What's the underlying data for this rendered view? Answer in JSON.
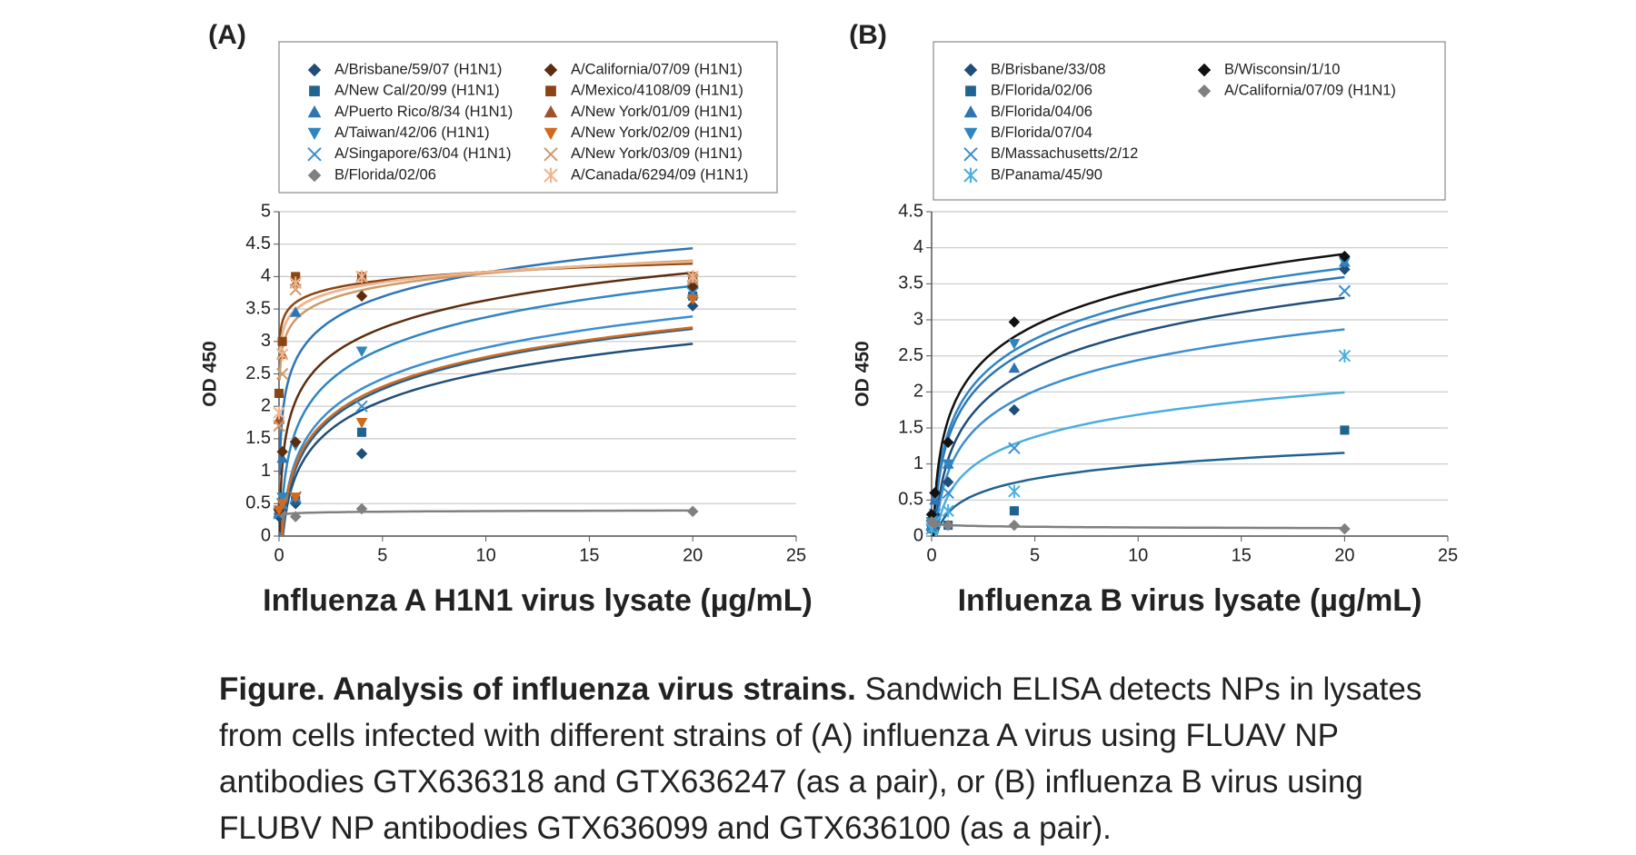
{
  "chart_data": [
    {
      "type": "scatter",
      "panel_label": "(A)",
      "x_label": "Influenza A H1N1 virus lysate (µg/mL)",
      "y_label": "OD 450",
      "xlim": [
        0,
        25
      ],
      "xticks": [
        0,
        5,
        10,
        15,
        20,
        25
      ],
      "ylim": [
        0,
        5
      ],
      "yticks": [
        0,
        0.5,
        1,
        1.5,
        2,
        2.5,
        3,
        3.5,
        4,
        4.5,
        5
      ],
      "grid": true,
      "trendline": "log",
      "x": [
        0,
        0.16,
        0.8,
        4,
        20
      ],
      "series": [
        {
          "name": "A/Brisbane/59/07 (H1N1)",
          "marker": "diamond",
          "color": "#1f4e79",
          "values": [
            0.3,
            0.4,
            0.5,
            1.27,
            3.55
          ]
        },
        {
          "name": "A/New Cal/20/99 (H1N1)",
          "marker": "square",
          "color": "#1f6391",
          "values": [
            0.35,
            0.45,
            0.55,
            1.6,
            3.7
          ]
        },
        {
          "name": "A/Puerto Rico/8/34 (H1N1)",
          "marker": "triangle",
          "color": "#2e75b6",
          "values": [
            0.4,
            1.2,
            3.45,
            4.0,
            3.9
          ]
        },
        {
          "name": "A/Taiwan/42/06 (H1N1)",
          "marker": "triangle-down",
          "color": "#2e86c1",
          "values": [
            0.4,
            0.6,
            1.4,
            2.85,
            3.85
          ]
        },
        {
          "name": "A/Singapore/63/04 (H1N1)",
          "marker": "x",
          "color": "#3a8ed0",
          "values": [
            0.35,
            0.5,
            0.6,
            2.0,
            3.75
          ]
        },
        {
          "name": "B/Florida/02/06",
          "marker": "diamond",
          "color": "#808080",
          "values": [
            0.4,
            0.35,
            0.3,
            0.42,
            0.38
          ]
        },
        {
          "name": "A/California/07/09 (H1N1)",
          "marker": "diamond",
          "color": "#5c2e0e",
          "values": [
            0.4,
            1.3,
            1.45,
            3.7,
            3.85
          ]
        },
        {
          "name": "A/Mexico/4108/09 (H1N1)",
          "marker": "square",
          "color": "#8b4513",
          "values": [
            2.2,
            3.0,
            4.0,
            4.0,
            4.0
          ]
        },
        {
          "name": "A/New York/01/09 (H1N1)",
          "marker": "triangle",
          "color": "#a0522d",
          "values": [
            1.8,
            2.8,
            3.9,
            4.0,
            4.0
          ]
        },
        {
          "name": "A/New York/02/09 (H1N1)",
          "marker": "triangle-down",
          "color": "#d2691e",
          "values": [
            0.4,
            0.5,
            0.6,
            1.75,
            3.65
          ]
        },
        {
          "name": "A/New York/03/09 (H1N1)",
          "marker": "x",
          "color": "#cd9a6a",
          "values": [
            1.7,
            2.5,
            3.8,
            4.0,
            3.95
          ]
        },
        {
          "name": "A/Canada/6294/09 (H1N1)",
          "marker": "asterisk",
          "color": "#f0b48a",
          "values": [
            1.9,
            2.8,
            3.9,
            4.0,
            4.0
          ]
        }
      ]
    },
    {
      "type": "scatter",
      "panel_label": "(B)",
      "x_label": "Influenza B virus lysate (µg/mL)",
      "y_label": "OD 450",
      "xlim": [
        0,
        25
      ],
      "xticks": [
        0,
        5,
        10,
        15,
        20,
        25
      ],
      "ylim": [
        0,
        4.5
      ],
      "yticks": [
        0,
        0.5,
        1,
        1.5,
        2,
        2.5,
        3,
        3.5,
        4,
        4.5
      ],
      "grid": true,
      "trendline": "log",
      "x": [
        0,
        0.16,
        0.8,
        4,
        20
      ],
      "series": [
        {
          "name": "B/Brisbane/33/08",
          "marker": "diamond",
          "color": "#1f4e79",
          "values": [
            0.1,
            0.3,
            0.75,
            1.75,
            3.7
          ]
        },
        {
          "name": "B/Florida/02/06",
          "marker": "square",
          "color": "#1f6391",
          "values": [
            0.1,
            0.15,
            0.15,
            0.35,
            1.47
          ]
        },
        {
          "name": "B/Florida/04/06",
          "marker": "triangle",
          "color": "#2e75b6",
          "values": [
            0.2,
            0.5,
            1.0,
            2.33,
            3.8
          ]
        },
        {
          "name": "B/Florida/07/04",
          "marker": "triangle-down",
          "color": "#2e86c1",
          "values": [
            0.2,
            0.55,
            1.0,
            2.67,
            3.8
          ]
        },
        {
          "name": "B/Massachusetts/2/12",
          "marker": "x",
          "color": "#3a8ed0",
          "values": [
            0.15,
            0.3,
            0.6,
            1.22,
            3.4
          ]
        },
        {
          "name": "B/Panama/45/90",
          "marker": "asterisk",
          "color": "#4aaee0",
          "values": [
            0.1,
            0.2,
            0.35,
            0.62,
            2.5
          ]
        },
        {
          "name": "B/Wisconsin/1/10",
          "marker": "diamond",
          "color": "#111111",
          "values": [
            0.3,
            0.6,
            1.3,
            2.97,
            3.88
          ]
        },
        {
          "name": "A/California/07/09 (H1N1)",
          "marker": "diamond",
          "color": "#808080",
          "values": [
            0.2,
            0.17,
            0.15,
            0.15,
            0.1
          ]
        }
      ]
    }
  ],
  "caption": {
    "title": "Figure. Analysis of influenza virus strains.",
    "text": "Sandwich ELISA detects NPs in lysates from cells infected with different strains of (A) influenza A virus using FLUAV NP antibodies GTX636318 and GTX636247 (as a pair), or (B) influenza B virus using FLUBV NP antibodies GTX636099 and GTX636100 (as a pair)."
  }
}
